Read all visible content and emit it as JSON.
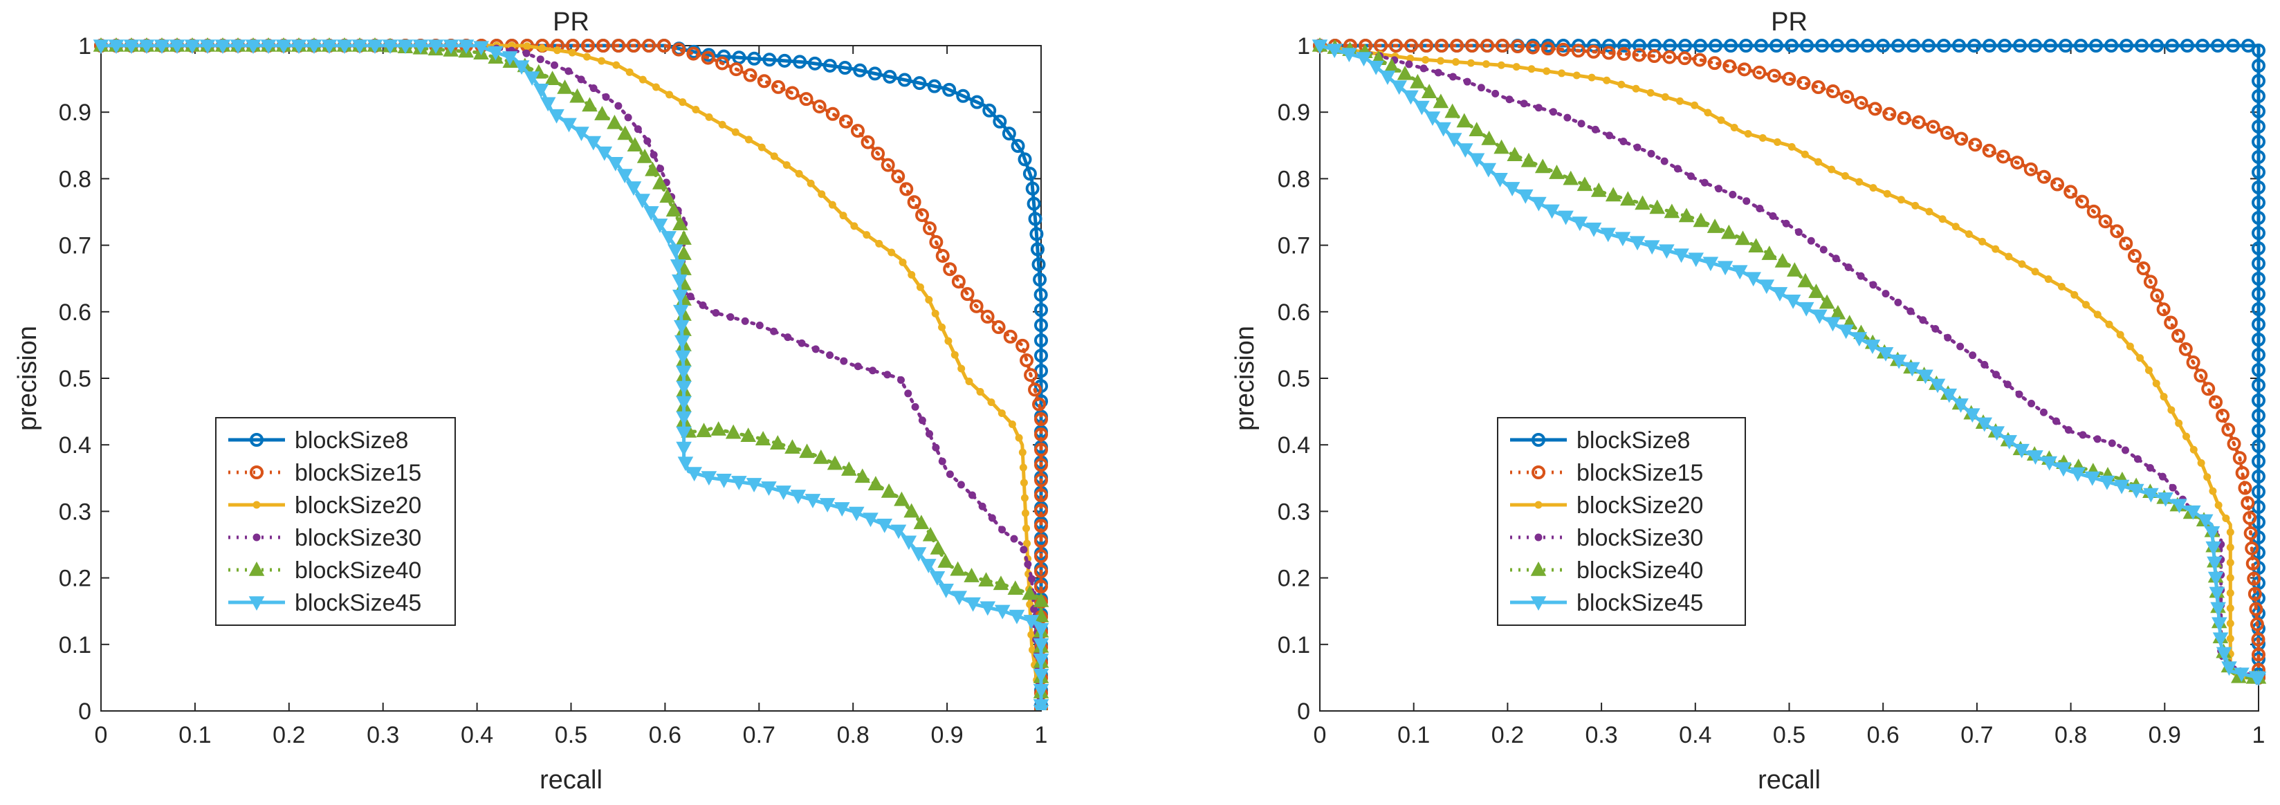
{
  "colors": {
    "blockSize8": "#0072BD",
    "blockSize15": "#D95319",
    "blockSize20": "#EDB120",
    "blockSize30": "#7E2F8E",
    "blockSize40": "#77AC30",
    "blockSize45": "#4DBEEE",
    "axis": "#262626"
  },
  "chart_data": [
    {
      "type": "line",
      "title": "PR",
      "xlabel": "recall",
      "ylabel": "precision",
      "xlim": [
        0,
        1
      ],
      "ylim": [
        0,
        1
      ],
      "xticks": [
        "0",
        "0.1",
        "0.2",
        "0.3",
        "0.4",
        "0.5",
        "0.6",
        "0.7",
        "0.8",
        "0.9",
        "1"
      ],
      "yticks": [
        "0",
        "0.1",
        "0.2",
        "0.3",
        "0.4",
        "0.5",
        "0.6",
        "0.7",
        "0.8",
        "0.9",
        "1"
      ],
      "grid": false,
      "legend_position": "lower-left",
      "series": [
        {
          "name": "blockSize8",
          "style": "solid",
          "marker": "circle",
          "x": [
            0,
            0.2,
            0.4,
            0.6,
            0.65,
            0.7,
            0.75,
            0.8,
            0.85,
            0.9,
            0.94,
            0.96,
            0.97,
            0.98,
            0.99,
            0.995,
            1.0,
            1.0,
            1.0
          ],
          "y": [
            1,
            1,
            1,
            1,
            0.985,
            0.98,
            0.975,
            0.965,
            0.95,
            0.935,
            0.91,
            0.88,
            0.86,
            0.84,
            0.8,
            0.72,
            0.62,
            0.3,
            0
          ]
        },
        {
          "name": "blockSize15",
          "style": "dotted",
          "marker": "circle",
          "x": [
            0,
            0.3,
            0.5,
            0.6,
            0.65,
            0.7,
            0.75,
            0.8,
            0.85,
            0.88,
            0.9,
            0.93,
            0.96,
            0.98,
            0.99,
            1.0,
            1.0,
            1.0
          ],
          "y": [
            1,
            1,
            1,
            1,
            0.98,
            0.95,
            0.92,
            0.88,
            0.8,
            0.73,
            0.67,
            0.61,
            0.57,
            0.55,
            0.5,
            0.45,
            0.3,
            0
          ]
        },
        {
          "name": "blockSize20",
          "style": "solid",
          "marker": "dot",
          "x": [
            0,
            0.3,
            0.45,
            0.5,
            0.55,
            0.6,
            0.65,
            0.7,
            0.75,
            0.8,
            0.85,
            0.88,
            0.9,
            0.92,
            0.95,
            0.97,
            0.98,
            0.99,
            1.0
          ],
          "y": [
            1,
            1,
            1,
            0.99,
            0.97,
            0.93,
            0.89,
            0.85,
            0.8,
            0.73,
            0.68,
            0.62,
            0.56,
            0.5,
            0.46,
            0.43,
            0.4,
            0.1,
            0
          ]
        },
        {
          "name": "blockSize30",
          "style": "dotted",
          "marker": "dot",
          "x": [
            0,
            0.3,
            0.4,
            0.45,
            0.5,
            0.55,
            0.58,
            0.6,
            0.61,
            0.62,
            0.62,
            0.65,
            0.7,
            0.75,
            0.8,
            0.85,
            0.88,
            0.9,
            0.93,
            0.96,
            0.98,
            0.99,
            1.0
          ],
          "y": [
            1,
            1,
            1,
            0.99,
            0.96,
            0.91,
            0.86,
            0.8,
            0.76,
            0.74,
            0.63,
            0.6,
            0.58,
            0.55,
            0.52,
            0.5,
            0.42,
            0.36,
            0.32,
            0.27,
            0.25,
            0.2,
            0
          ]
        },
        {
          "name": "blockSize40",
          "style": "dotted",
          "marker": "triangle-up",
          "x": [
            0,
            0.3,
            0.4,
            0.45,
            0.48,
            0.5,
            0.55,
            0.58,
            0.6,
            0.62,
            0.62,
            0.64,
            0.65,
            0.7,
            0.75,
            0.8,
            0.85,
            0.88,
            0.9,
            0.93,
            0.96,
            0.98,
            1.0,
            1.0
          ],
          "y": [
            1,
            1,
            0.99,
            0.97,
            0.95,
            0.93,
            0.88,
            0.83,
            0.78,
            0.72,
            0.42,
            0.42,
            0.425,
            0.41,
            0.39,
            0.36,
            0.32,
            0.27,
            0.22,
            0.2,
            0.19,
            0.18,
            0.17,
            0
          ]
        },
        {
          "name": "blockSize45",
          "style": "solid",
          "marker": "triangle-down",
          "x": [
            0,
            0.3,
            0.4,
            0.44,
            0.46,
            0.47,
            0.48,
            0.5,
            0.52,
            0.55,
            0.57,
            0.59,
            0.61,
            0.615,
            0.62,
            0.62,
            0.625,
            0.65,
            0.7,
            0.75,
            0.8,
            0.85,
            0.88,
            0.9,
            0.93,
            0.96,
            0.98,
            1.0,
            1.0
          ],
          "y": [
            1,
            1,
            1,
            0.98,
            0.95,
            0.93,
            0.9,
            0.88,
            0.86,
            0.82,
            0.78,
            0.74,
            0.7,
            0.66,
            0.5,
            0.38,
            0.36,
            0.35,
            0.34,
            0.32,
            0.3,
            0.27,
            0.22,
            0.18,
            0.16,
            0.15,
            0.14,
            0.13,
            0
          ]
        }
      ]
    },
    {
      "type": "line",
      "title": "PR",
      "xlabel": "recall",
      "ylabel": "precision",
      "xlim": [
        0,
        1
      ],
      "ylim": [
        0,
        1
      ],
      "xticks": [
        "0",
        "0.1",
        "0.2",
        "0.3",
        "0.4",
        "0.5",
        "0.6",
        "0.7",
        "0.8",
        "0.9",
        "1"
      ],
      "yticks": [
        "0",
        "0.1",
        "0.2",
        "0.3",
        "0.4",
        "0.5",
        "0.6",
        "0.7",
        "0.8",
        "0.9",
        "1"
      ],
      "grid": false,
      "legend_position": "lower-left",
      "series": [
        {
          "name": "blockSize8",
          "style": "solid",
          "marker": "circle",
          "x": [
            0,
            0.1,
            0.2,
            0.3,
            0.4,
            0.5,
            0.6,
            0.7,
            0.8,
            0.9,
            0.95,
            0.99,
            1.0,
            1.0,
            1.0
          ],
          "y": [
            1,
            1,
            1,
            1,
            1,
            1,
            1,
            1,
            1,
            1,
            1,
            1,
            1,
            0.5,
            0.05
          ]
        },
        {
          "name": "blockSize15",
          "style": "dotted",
          "marker": "circle",
          "x": [
            0,
            0.1,
            0.2,
            0.3,
            0.4,
            0.5,
            0.55,
            0.6,
            0.65,
            0.7,
            0.75,
            0.8,
            0.85,
            0.88,
            0.9,
            0.92,
            0.94,
            0.96,
            0.98,
            0.99,
            1.0,
            1.0
          ],
          "y": [
            1,
            1,
            1,
            0.99,
            0.98,
            0.95,
            0.93,
            0.9,
            0.88,
            0.85,
            0.82,
            0.78,
            0.72,
            0.66,
            0.6,
            0.55,
            0.5,
            0.45,
            0.38,
            0.3,
            0.1,
            0.05
          ]
        },
        {
          "name": "blockSize20",
          "style": "solid",
          "marker": "dot",
          "x": [
            0,
            0.05,
            0.1,
            0.2,
            0.3,
            0.4,
            0.45,
            0.5,
            0.55,
            0.6,
            0.65,
            0.7,
            0.75,
            0.8,
            0.85,
            0.88,
            0.9,
            0.92,
            0.94,
            0.96,
            0.97,
            0.97,
            0.98,
            1.0
          ],
          "y": [
            1,
            0.99,
            0.98,
            0.97,
            0.95,
            0.91,
            0.87,
            0.85,
            0.81,
            0.78,
            0.75,
            0.71,
            0.67,
            0.63,
            0.57,
            0.52,
            0.47,
            0.42,
            0.37,
            0.3,
            0.28,
            0.06,
            0.05,
            0.05
          ]
        },
        {
          "name": "blockSize30",
          "style": "dotted",
          "marker": "dot",
          "x": [
            0,
            0.05,
            0.1,
            0.15,
            0.2,
            0.25,
            0.3,
            0.35,
            0.4,
            0.45,
            0.5,
            0.55,
            0.6,
            0.65,
            0.7,
            0.75,
            0.8,
            0.85,
            0.9,
            0.93,
            0.96,
            0.96,
            0.98,
            1.0
          ],
          "y": [
            1,
            0.99,
            0.97,
            0.95,
            0.92,
            0.9,
            0.87,
            0.84,
            0.8,
            0.77,
            0.73,
            0.68,
            0.63,
            0.58,
            0.53,
            0.47,
            0.42,
            0.4,
            0.35,
            0.3,
            0.26,
            0.08,
            0.06,
            0.05
          ]
        },
        {
          "name": "blockSize40",
          "style": "dotted",
          "marker": "triangle-up",
          "x": [
            0,
            0.05,
            0.1,
            0.15,
            0.2,
            0.25,
            0.3,
            0.35,
            0.4,
            0.45,
            0.5,
            0.55,
            0.6,
            0.65,
            0.7,
            0.75,
            0.8,
            0.85,
            0.9,
            0.95,
            0.96,
            0.97,
            0.98,
            1.0
          ],
          "y": [
            1,
            0.99,
            0.95,
            0.89,
            0.84,
            0.81,
            0.78,
            0.76,
            0.74,
            0.71,
            0.67,
            0.6,
            0.54,
            0.5,
            0.44,
            0.39,
            0.37,
            0.35,
            0.32,
            0.28,
            0.1,
            0.06,
            0.05,
            0.05
          ]
        },
        {
          "name": "blockSize45",
          "style": "solid",
          "marker": "triangle-down",
          "x": [
            0,
            0.05,
            0.1,
            0.15,
            0.2,
            0.25,
            0.3,
            0.35,
            0.4,
            0.45,
            0.5,
            0.55,
            0.6,
            0.65,
            0.7,
            0.75,
            0.8,
            0.85,
            0.9,
            0.93,
            0.95,
            0.96,
            0.97,
            1.0
          ],
          "y": [
            1,
            0.98,
            0.92,
            0.85,
            0.79,
            0.75,
            0.72,
            0.7,
            0.68,
            0.66,
            0.62,
            0.58,
            0.54,
            0.5,
            0.44,
            0.39,
            0.36,
            0.34,
            0.32,
            0.3,
            0.28,
            0.1,
            0.06,
            0.05
          ]
        }
      ]
    }
  ]
}
